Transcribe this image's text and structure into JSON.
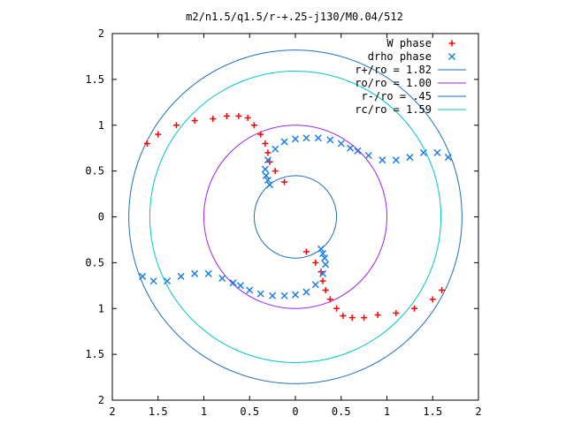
{
  "chart_data": {
    "type": "scatter",
    "title": "m2/n1.5/q1.5/r-+.25-j130/M0.04/512",
    "xlabel": "",
    "ylabel": "",
    "xlim": [
      -2,
      2
    ],
    "ylim": [
      -2,
      2
    ],
    "x_ticks": [
      -2,
      -1.5,
      -1,
      -0.5,
      0,
      0.5,
      1,
      1.5,
      2
    ],
    "y_ticks": [
      -2,
      -1.5,
      -1,
      -0.5,
      0,
      0.5,
      1,
      1.5,
      2
    ],
    "x_tick_labels": [
      "2",
      "1.5",
      "1",
      "0.5",
      "0",
      "0.5",
      "1",
      "1.5",
      "2"
    ],
    "y_tick_labels": [
      "2",
      "1.5",
      "1",
      "0.5",
      "0",
      "0.5",
      "1",
      "1.5",
      "2"
    ],
    "grid": false,
    "legend_position": "top-right",
    "series": [
      {
        "name": "W phase",
        "style": "points",
        "marker": "+",
        "color": "#ff0000",
        "x": [
          -1.62,
          -1.5,
          -1.3,
          -1.1,
          -0.9,
          -0.75,
          -0.62,
          -0.52,
          -0.45,
          -0.38,
          -0.33,
          -0.3,
          -0.28,
          -0.22,
          -0.12,
          1.6,
          1.5,
          1.3,
          1.1,
          0.9,
          0.75,
          0.62,
          0.52,
          0.45,
          0.38,
          0.33,
          0.3,
          0.28,
          0.22,
          0.12
        ],
        "y": [
          0.8,
          0.9,
          1.0,
          1.05,
          1.07,
          1.1,
          1.1,
          1.08,
          1.0,
          0.9,
          0.8,
          0.7,
          0.6,
          0.5,
          0.38,
          -0.8,
          -0.9,
          -1.0,
          -1.05,
          -1.07,
          -1.1,
          -1.1,
          -1.08,
          -1.0,
          -0.9,
          -0.8,
          -0.7,
          -0.6,
          -0.5,
          -0.38
        ]
      },
      {
        "name": "drho phase",
        "style": "points",
        "marker": "x",
        "color": "#1f7fe8",
        "x": [
          1.67,
          1.55,
          1.4,
          1.25,
          1.1,
          0.95,
          0.8,
          0.68,
          0.6,
          0.5,
          0.38,
          0.25,
          0.12,
          0.0,
          -0.12,
          -0.22,
          -0.3,
          -0.33,
          -0.32,
          -0.3,
          -0.28,
          -1.67,
          -1.55,
          -1.4,
          -1.25,
          -1.1,
          -0.95,
          -0.8,
          -0.68,
          -0.6,
          -0.5,
          -0.38,
          -0.25,
          -0.12,
          0.0,
          0.12,
          0.22,
          0.3,
          0.33,
          0.32,
          0.3,
          0.28
        ],
        "y": [
          0.65,
          0.7,
          0.7,
          0.65,
          0.62,
          0.62,
          0.67,
          0.72,
          0.75,
          0.8,
          0.84,
          0.86,
          0.86,
          0.85,
          0.82,
          0.74,
          0.62,
          0.52,
          0.45,
          0.4,
          0.35,
          -0.65,
          -0.7,
          -0.7,
          -0.65,
          -0.62,
          -0.62,
          -0.67,
          -0.72,
          -0.75,
          -0.8,
          -0.84,
          -0.86,
          -0.86,
          -0.85,
          -0.82,
          -0.74,
          -0.62,
          -0.52,
          -0.45,
          -0.4,
          -0.35
        ]
      },
      {
        "name": "r+/ro = 1.82",
        "style": "circle",
        "radius": 1.82,
        "color": "#1a6fbf"
      },
      {
        "name": "ro/ro = 1.00",
        "style": "circle",
        "radius": 1.0,
        "color": "#a020f0"
      },
      {
        "name": "r-/ro = .45",
        "style": "circle",
        "radius": 0.45,
        "color": "#1a6fbf"
      },
      {
        "name": "rc/ro = 1.59",
        "style": "circle",
        "radius": 1.59,
        "color": "#00c8c8"
      }
    ]
  }
}
